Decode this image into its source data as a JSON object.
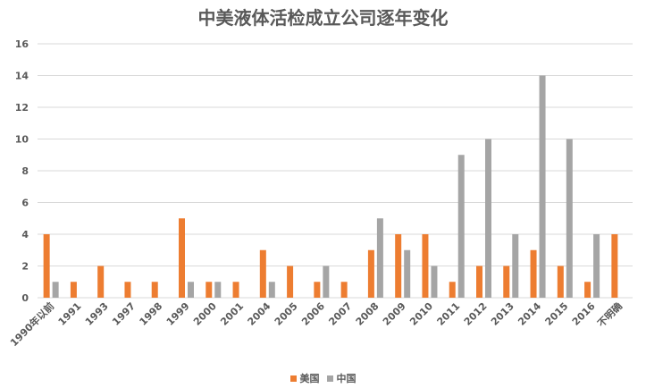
{
  "chart_data": {
    "type": "bar",
    "title": "中美液体活检成立公司逐年变化",
    "xlabel": "",
    "ylabel": "",
    "ylim": [
      0,
      16
    ],
    "yticks": [
      0,
      2,
      4,
      6,
      8,
      10,
      12,
      14,
      16
    ],
    "grid": true,
    "legend_position": "bottom",
    "categories": [
      "1990年以前",
      "1991",
      "1993",
      "1997",
      "1998",
      "1999",
      "2000",
      "2001",
      "2004",
      "2005",
      "2006",
      "2007",
      "2008",
      "2009",
      "2010",
      "2011",
      "2012",
      "2013",
      "2014",
      "2015",
      "2016",
      "不明确"
    ],
    "series": [
      {
        "name": "美国",
        "color": "#ED7D31",
        "values": [
          4,
          1,
          2,
          1,
          1,
          5,
          1,
          1,
          3,
          2,
          1,
          1,
          3,
          4,
          4,
          1,
          2,
          2,
          3,
          2,
          1,
          4
        ]
      },
      {
        "name": "中国",
        "color": "#A5A5A5",
        "values": [
          1,
          0,
          0,
          0,
          0,
          1,
          1,
          0,
          1,
          0,
          2,
          0,
          5,
          3,
          2,
          9,
          10,
          4,
          14,
          10,
          4,
          0
        ]
      }
    ]
  }
}
